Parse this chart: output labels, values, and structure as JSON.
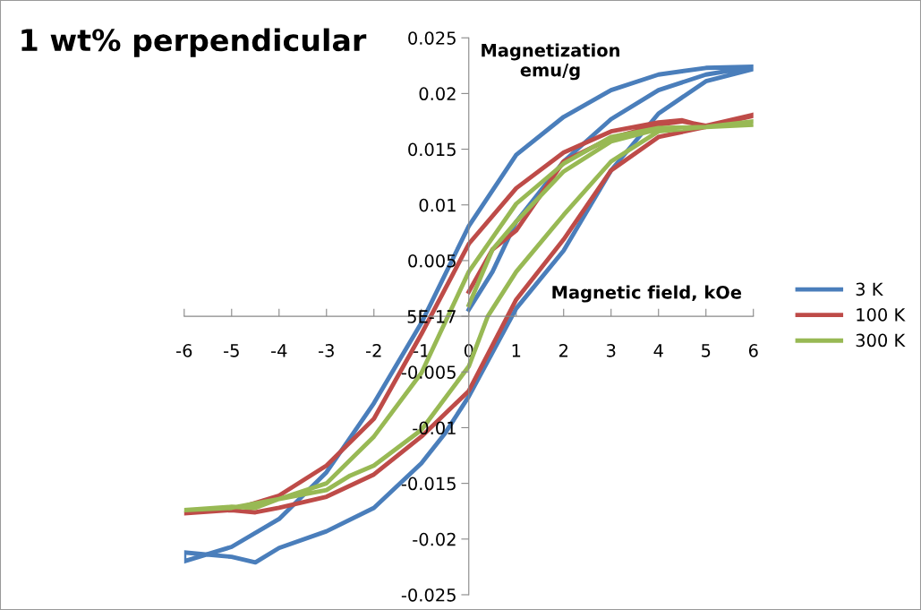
{
  "chart_data": {
    "type": "line",
    "title": "1 wt% perpendicular",
    "xlabel": "Magnetic field, kOe",
    "ylabel": "Magnetization\nemu/g",
    "xlim": [
      -6,
      6
    ],
    "xticks": [
      -6,
      -5,
      -4,
      -3,
      -2,
      -1,
      0,
      1,
      2,
      3,
      4,
      5,
      6
    ],
    "ylim": [
      -0.025,
      0.025
    ],
    "yticks": [
      {
        "value": -0.025,
        "label": "-0.025"
      },
      {
        "value": -0.02,
        "label": "-0.02"
      },
      {
        "value": -0.015,
        "label": "-0.015"
      },
      {
        "value": -0.01,
        "label": "-0.01"
      },
      {
        "value": -0.005,
        "label": "-0.005"
      },
      {
        "value": 0,
        "label": "5E-17"
      },
      0.005,
      0.01,
      0.015,
      0.02,
      0.025
    ],
    "grid": false,
    "legend": "right",
    "marker": "none",
    "line_style": "solid",
    "series": [
      {
        "name": "3 K",
        "color": "#4a7ebb",
        "x": [
          0,
          0.5,
          1,
          2,
          3,
          4,
          5,
          6,
          5,
          4,
          3,
          2,
          1,
          0,
          -1,
          -2,
          -3,
          -4,
          -5,
          -6,
          -6,
          -5,
          -4.5,
          -4,
          -3,
          -2,
          -1,
          -0.5,
          0,
          1,
          2,
          3,
          4,
          5,
          6
        ],
        "values": [
          0.0006,
          0.004,
          0.0085,
          0.0139,
          0.0177,
          0.0203,
          0.0217,
          0.0224,
          0.0223,
          0.0217,
          0.0203,
          0.0179,
          0.0145,
          0.0081,
          -0.0006,
          -0.0078,
          -0.014,
          -0.0182,
          -0.0207,
          -0.022,
          -0.0212,
          -0.0216,
          -0.0221,
          -0.0208,
          -0.0193,
          -0.0172,
          -0.0132,
          -0.0105,
          -0.0072,
          0.0007,
          0.0059,
          0.0131,
          0.0182,
          0.0211,
          0.0222
        ]
      },
      {
        "name": "100 K",
        "color": "#be4b48",
        "x": [
          0,
          0.5,
          1,
          2,
          3,
          4,
          4.5,
          5,
          6,
          5,
          4.5,
          4,
          3,
          2,
          1,
          0,
          -1,
          -2,
          -3,
          -4,
          -5,
          -6,
          -5,
          -4.5,
          -4,
          -3,
          -2,
          -1,
          0,
          1,
          2,
          3,
          4,
          5,
          6
        ],
        "values": [
          0.0022,
          0.006,
          0.0077,
          0.0139,
          0.016,
          0.0172,
          0.0175,
          0.0171,
          0.0181,
          0.017,
          0.0176,
          0.0174,
          0.0166,
          0.0147,
          0.0115,
          0.0065,
          -0.0016,
          -0.0092,
          -0.0134,
          -0.0161,
          -0.0174,
          -0.0177,
          -0.0174,
          -0.0176,
          -0.0172,
          -0.0162,
          -0.0142,
          -0.0108,
          -0.0067,
          0.0015,
          0.0069,
          0.0131,
          0.0161,
          0.017,
          0.018
        ]
      },
      {
        "name": "300 K",
        "color": "#98b954",
        "x": [
          0,
          0.5,
          1,
          2,
          3,
          4,
          5,
          6,
          5,
          4,
          3,
          2,
          1,
          0,
          -1,
          -2,
          -3,
          -4,
          -5,
          -6,
          -5,
          -4.5,
          -4,
          -3,
          -2.5,
          -2,
          -1,
          0,
          0.4,
          1,
          2,
          3,
          4,
          5,
          6
        ],
        "values": [
          0.001,
          0.006,
          0.0085,
          0.013,
          0.0157,
          0.0168,
          0.017,
          0.0172,
          0.017,
          0.0169,
          0.0161,
          0.0137,
          0.0101,
          0.004,
          -0.0051,
          -0.0108,
          -0.015,
          -0.0164,
          -0.0172,
          -0.0174,
          -0.0171,
          -0.0172,
          -0.0164,
          -0.0156,
          -0.0143,
          -0.0134,
          -0.0102,
          -0.0045,
          0,
          0.004,
          0.0091,
          0.0139,
          0.0166,
          0.017,
          0.0175
        ]
      }
    ]
  }
}
